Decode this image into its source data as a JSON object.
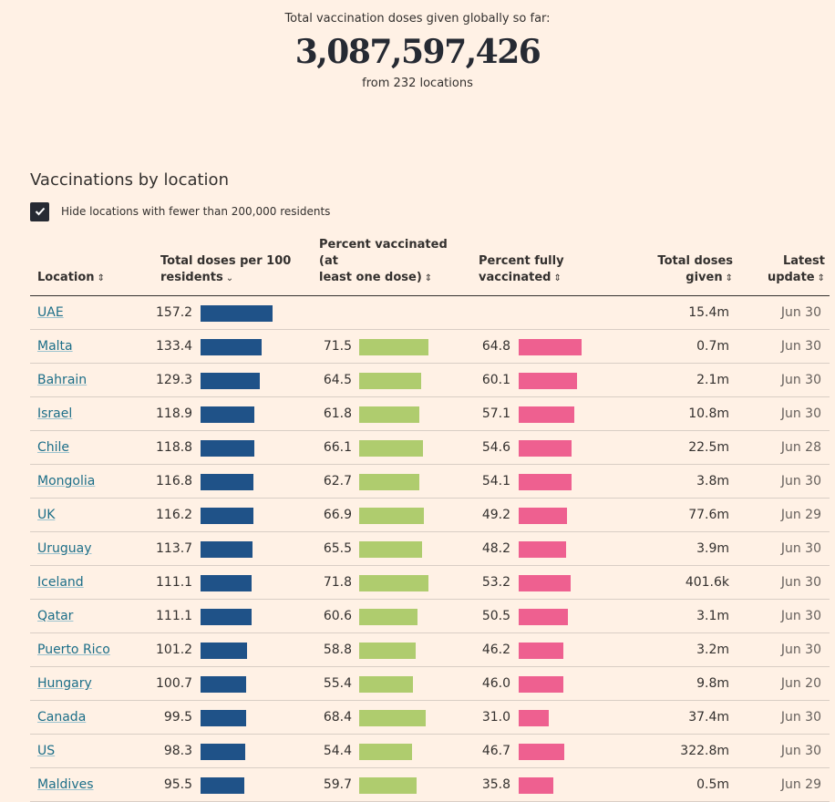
{
  "hero": {
    "label": "Total vaccination doses given globally so far:",
    "total": "3,087,597,426",
    "sub": "from 232 locations"
  },
  "section": {
    "title": "Vaccinations by location",
    "checkbox_label": "Hide locations with fewer than 200,000 residents",
    "checkbox_checked": true
  },
  "colors": {
    "doses": "#1f5288",
    "pct1": "#afcc6e",
    "pct2": "#ee6090",
    "link": "#1c6e88"
  },
  "columns": {
    "location": "Location",
    "doses_l1": "Total doses per 100",
    "doses_l2": "residents",
    "pct1_l1": "Percent vaccinated (at",
    "pct1_l2": "least one dose)",
    "pct2_l1": "Percent fully",
    "pct2_l2": "vaccinated",
    "total_l1": "Total doses",
    "total_l2": "given",
    "upd_l1": "Latest",
    "upd_l2": "update"
  },
  "rows": [
    {
      "location": "UAE",
      "doses": "157.2",
      "pct1": "",
      "pct2": "",
      "total": "15.4m",
      "update": "Jun 30"
    },
    {
      "location": "Malta",
      "doses": "133.4",
      "pct1": "71.5",
      "pct2": "64.8",
      "total": "0.7m",
      "update": "Jun 30"
    },
    {
      "location": "Bahrain",
      "doses": "129.3",
      "pct1": "64.5",
      "pct2": "60.1",
      "total": "2.1m",
      "update": "Jun 30"
    },
    {
      "location": "Israel",
      "doses": "118.9",
      "pct1": "61.8",
      "pct2": "57.1",
      "total": "10.8m",
      "update": "Jun 30"
    },
    {
      "location": "Chile",
      "doses": "118.8",
      "pct1": "66.1",
      "pct2": "54.6",
      "total": "22.5m",
      "update": "Jun 28"
    },
    {
      "location": "Mongolia",
      "doses": "116.8",
      "pct1": "62.7",
      "pct2": "54.1",
      "total": "3.8m",
      "update": "Jun 30"
    },
    {
      "location": "UK",
      "doses": "116.2",
      "pct1": "66.9",
      "pct2": "49.2",
      "total": "77.6m",
      "update": "Jun 29"
    },
    {
      "location": "Uruguay",
      "doses": "113.7",
      "pct1": "65.5",
      "pct2": "48.2",
      "total": "3.9m",
      "update": "Jun 30"
    },
    {
      "location": "Iceland",
      "doses": "111.1",
      "pct1": "71.8",
      "pct2": "53.2",
      "total": "401.6k",
      "update": "Jun 30"
    },
    {
      "location": "Qatar",
      "doses": "111.1",
      "pct1": "60.6",
      "pct2": "50.5",
      "total": "3.1m",
      "update": "Jun 30"
    },
    {
      "location": "Puerto Rico",
      "doses": "101.2",
      "pct1": "58.8",
      "pct2": "46.2",
      "total": "3.2m",
      "update": "Jun 30"
    },
    {
      "location": "Hungary",
      "doses": "100.7",
      "pct1": "55.4",
      "pct2": "46.0",
      "total": "9.8m",
      "update": "Jun 20"
    },
    {
      "location": "Canada",
      "doses": "99.5",
      "pct1": "68.4",
      "pct2": "31.0",
      "total": "37.4m",
      "update": "Jun 30"
    },
    {
      "location": "US",
      "doses": "98.3",
      "pct1": "54.4",
      "pct2": "46.7",
      "total": "322.8m",
      "update": "Jun 30"
    },
    {
      "location": "Maldives",
      "doses": "95.5",
      "pct1": "59.7",
      "pct2": "35.8",
      "total": "0.5m",
      "update": "Jun 29"
    }
  ]
}
